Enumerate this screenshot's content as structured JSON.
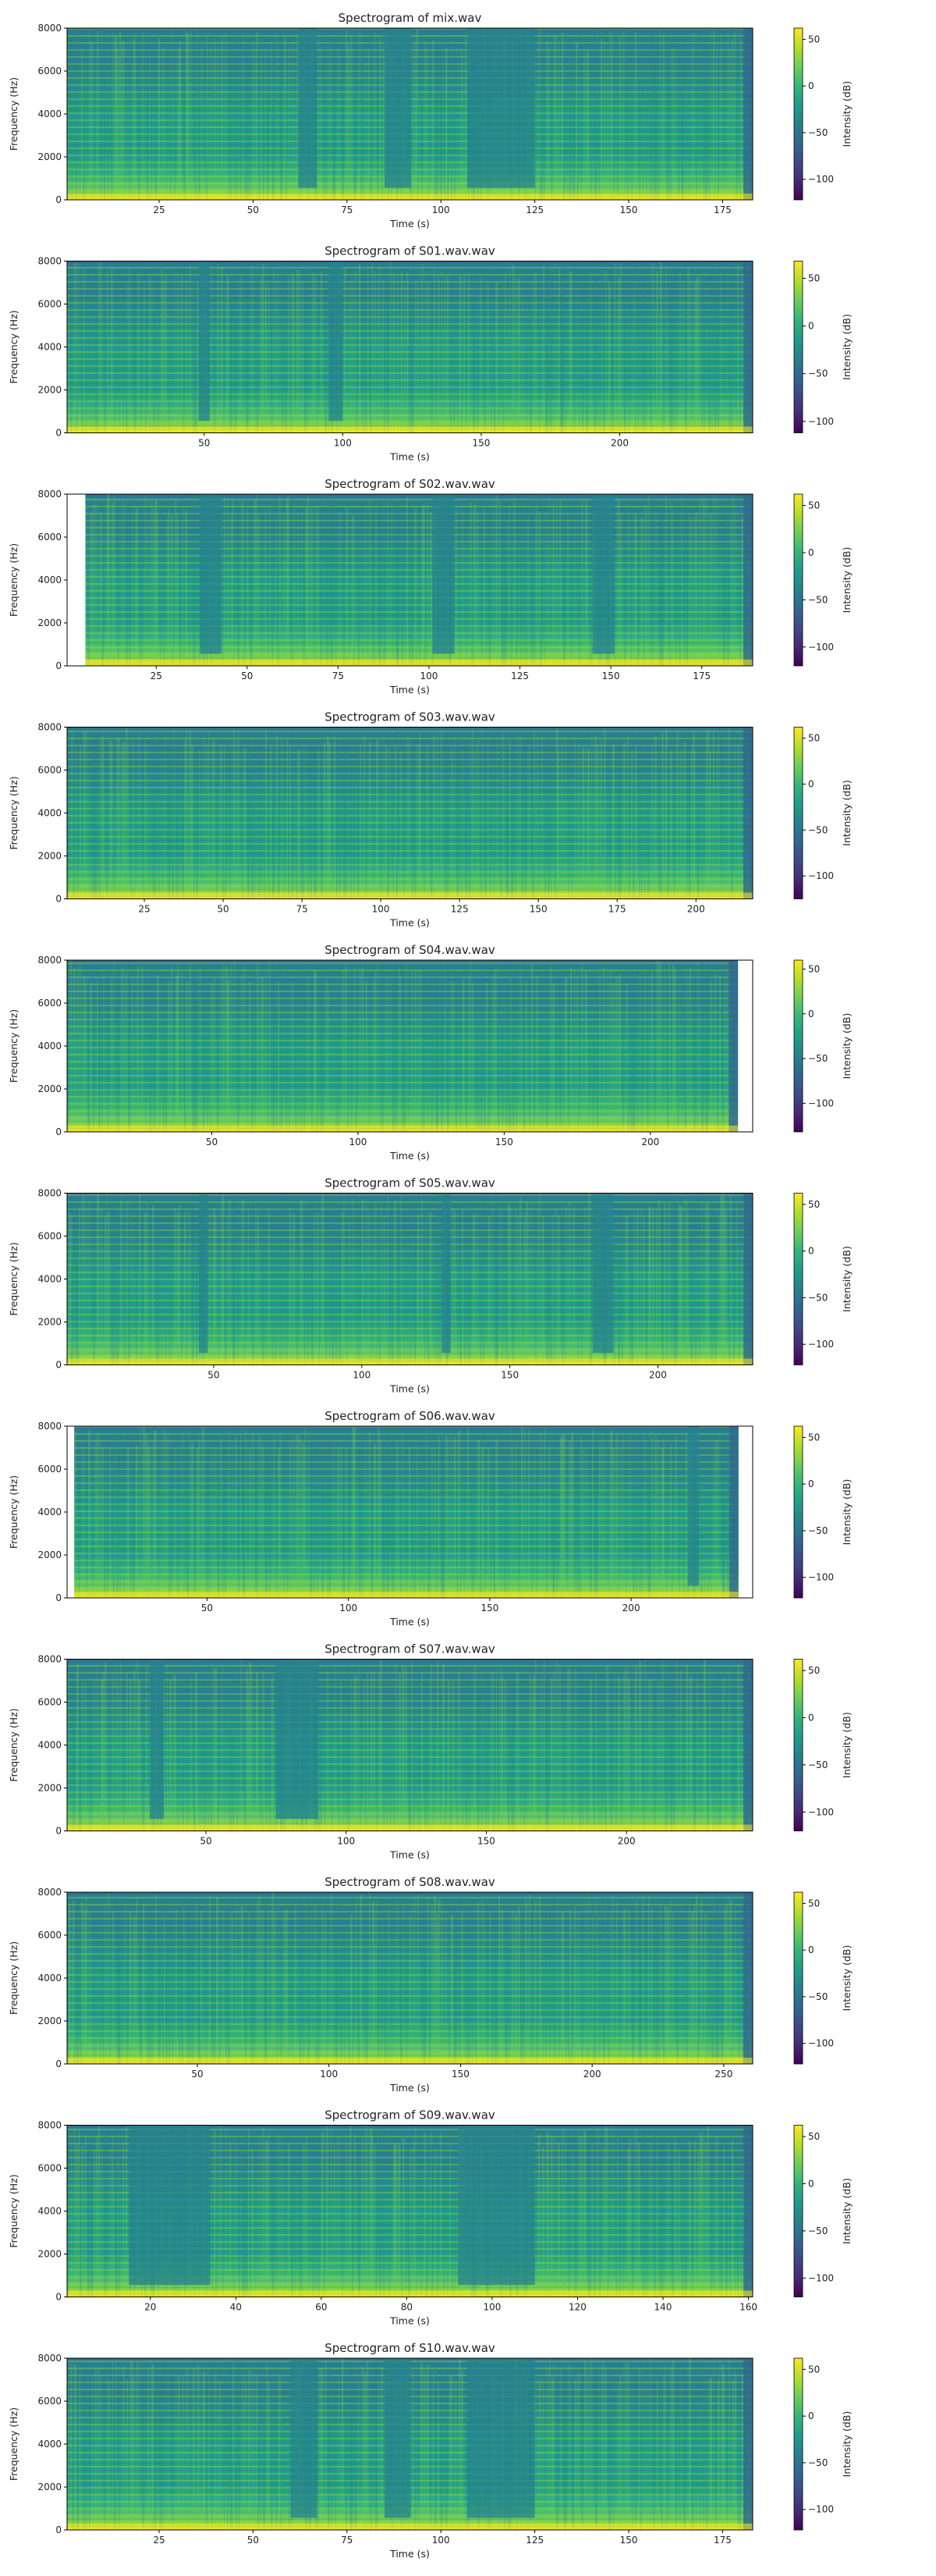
{
  "figure": {
    "colorbar_colors": [
      "#440154",
      "#482878",
      "#3e4a89",
      "#31688e",
      "#26828e",
      "#1f9e89",
      "#35b779",
      "#6ece58",
      "#b5de2b",
      "#fde725"
    ]
  },
  "chart_data": [
    {
      "type": "heatmap",
      "title": "Spectrogram of mix.wav",
      "xlabel": "Time (s)",
      "ylabel": "Frequency (Hz)",
      "colorbar_label": "Intensity (dB)",
      "xlim": [
        0.5,
        183
      ],
      "data_x_range": [
        0.5,
        183
      ],
      "ylim": [
        0,
        8000
      ],
      "xticks": [
        25,
        50,
        75,
        100,
        125,
        150,
        175
      ],
      "xtick_labels": [
        "25",
        "50",
        "75",
        "100",
        "125",
        "150",
        "175"
      ],
      "yticks": [
        0,
        2000,
        4000,
        6000,
        8000
      ],
      "ytick_labels": [
        "0",
        "2000",
        "4000",
        "6000",
        "8000"
      ],
      "clim": [
        -122,
        62
      ],
      "cticks": [
        50,
        0,
        -50,
        -100
      ],
      "ctick_labels": [
        "50",
        "0",
        "−50",
        "−100"
      ],
      "quiet_segments": [
        [
          62,
          67
        ],
        [
          85,
          92
        ],
        [
          107,
          125
        ]
      ]
    },
    {
      "type": "heatmap",
      "title": "Spectrogram of S01.wav.wav",
      "xlabel": "Time (s)",
      "ylabel": "Frequency (Hz)",
      "colorbar_label": "Intensity (dB)",
      "xlim": [
        0.5,
        248
      ],
      "data_x_range": [
        0.5,
        248
      ],
      "ylim": [
        0,
        8000
      ],
      "xticks": [
        50,
        100,
        150,
        200
      ],
      "xtick_labels": [
        "50",
        "100",
        "150",
        "200"
      ],
      "yticks": [
        0,
        2000,
        4000,
        6000,
        8000
      ],
      "ytick_labels": [
        "0",
        "2000",
        "4000",
        "6000",
        "8000"
      ],
      "clim": [
        -112,
        68
      ],
      "cticks": [
        50,
        0,
        -50,
        -100
      ],
      "ctick_labels": [
        "50",
        "0",
        "−50",
        "−100"
      ],
      "quiet_segments": [
        [
          48,
          52
        ],
        [
          95,
          100
        ]
      ]
    },
    {
      "type": "heatmap",
      "title": "Spectrogram of S02.wav.wav",
      "xlabel": "Time (s)",
      "ylabel": "Frequency (Hz)",
      "colorbar_label": "Intensity (dB)",
      "xlim": [
        0.5,
        189
      ],
      "data_x_range": [
        5.5,
        189
      ],
      "ylim": [
        0,
        8000
      ],
      "xticks": [
        25,
        50,
        75,
        100,
        125,
        150,
        175
      ],
      "xtick_labels": [
        "25",
        "50",
        "75",
        "100",
        "125",
        "150",
        "175"
      ],
      "yticks": [
        0,
        2000,
        4000,
        6000,
        8000
      ],
      "ytick_labels": [
        "0",
        "2000",
        "4000",
        "6000",
        "8000"
      ],
      "clim": [
        -120,
        62
      ],
      "cticks": [
        50,
        0,
        -50,
        -100
      ],
      "ctick_labels": [
        "50",
        "0",
        "−50",
        "−100"
      ],
      "quiet_segments": [
        [
          37,
          43
        ],
        [
          101,
          107
        ],
        [
          145,
          151
        ]
      ]
    },
    {
      "type": "heatmap",
      "title": "Spectrogram of S03.wav.wav",
      "xlabel": "Time (s)",
      "ylabel": "Frequency (Hz)",
      "colorbar_label": "Intensity (dB)",
      "xlim": [
        0.5,
        218
      ],
      "data_x_range": [
        0.5,
        218
      ],
      "ylim": [
        0,
        8000
      ],
      "xticks": [
        25,
        50,
        75,
        100,
        125,
        150,
        175,
        200
      ],
      "xtick_labels": [
        "25",
        "50",
        "75",
        "100",
        "125",
        "150",
        "175",
        "200"
      ],
      "yticks": [
        0,
        2000,
        4000,
        6000,
        8000
      ],
      "ytick_labels": [
        "0",
        "2000",
        "4000",
        "6000",
        "8000"
      ],
      "clim": [
        -125,
        62
      ],
      "cticks": [
        50,
        0,
        -50,
        -100
      ],
      "ctick_labels": [
        "50",
        "0",
        "−50",
        "−100"
      ],
      "quiet_segments": []
    },
    {
      "type": "heatmap",
      "title": "Spectrogram of S04.wav.wav",
      "xlabel": "Time (s)",
      "ylabel": "Frequency (Hz)",
      "colorbar_label": "Intensity (dB)",
      "xlim": [
        0.5,
        235
      ],
      "data_x_range": [
        0.5,
        230
      ],
      "ylim": [
        0,
        8000
      ],
      "xticks": [
        50,
        100,
        150,
        200
      ],
      "xtick_labels": [
        "50",
        "100",
        "150",
        "200"
      ],
      "yticks": [
        0,
        2000,
        4000,
        6000,
        8000
      ],
      "ytick_labels": [
        "0",
        "2000",
        "4000",
        "6000",
        "8000"
      ],
      "clim": [
        -132,
        60
      ],
      "cticks": [
        50,
        0,
        -50,
        -100
      ],
      "ctick_labels": [
        "50",
        "0",
        "−50",
        "−100"
      ],
      "quiet_segments": []
    },
    {
      "type": "heatmap",
      "title": "Spectrogram of S05.wav.wav",
      "xlabel": "Time (s)",
      "ylabel": "Frequency (Hz)",
      "colorbar_label": "Intensity (dB)",
      "xlim": [
        0.5,
        232
      ],
      "data_x_range": [
        0.5,
        232
      ],
      "ylim": [
        0,
        8000
      ],
      "xticks": [
        50,
        100,
        150,
        200
      ],
      "xtick_labels": [
        "50",
        "100",
        "150",
        "200"
      ],
      "yticks": [
        0,
        2000,
        4000,
        6000,
        8000
      ],
      "ytick_labels": [
        "0",
        "2000",
        "4000",
        "6000",
        "8000"
      ],
      "clim": [
        -122,
        62
      ],
      "cticks": [
        50,
        0,
        -50,
        -100
      ],
      "ctick_labels": [
        "50",
        "0",
        "−50",
        "−100"
      ],
      "quiet_segments": [
        [
          45,
          48
        ],
        [
          127,
          130
        ],
        [
          178,
          185
        ]
      ]
    },
    {
      "type": "heatmap",
      "title": "Spectrogram of S06.wav.wav",
      "xlabel": "Time (s)",
      "ylabel": "Frequency (Hz)",
      "colorbar_label": "Intensity (dB)",
      "xlim": [
        0.5,
        243
      ],
      "data_x_range": [
        3,
        238
      ],
      "ylim": [
        0,
        8000
      ],
      "xticks": [
        50,
        100,
        150,
        200
      ],
      "xtick_labels": [
        "50",
        "100",
        "150",
        "200"
      ],
      "yticks": [
        0,
        2000,
        4000,
        6000,
        8000
      ],
      "ytick_labels": [
        "0",
        "2000",
        "4000",
        "6000",
        "8000"
      ],
      "clim": [
        -122,
        62
      ],
      "cticks": [
        50,
        0,
        -50,
        -100
      ],
      "ctick_labels": [
        "50",
        "0",
        "−50",
        "−100"
      ],
      "quiet_segments": [
        [
          220,
          224
        ]
      ]
    },
    {
      "type": "heatmap",
      "title": "Spectrogram of S07.wav.wav",
      "xlabel": "Time (s)",
      "ylabel": "Frequency (Hz)",
      "colorbar_label": "Intensity (dB)",
      "xlim": [
        0.5,
        245
      ],
      "data_x_range": [
        0.5,
        245
      ],
      "ylim": [
        0,
        8000
      ],
      "xticks": [
        50,
        100,
        150,
        200
      ],
      "xtick_labels": [
        "50",
        "100",
        "150",
        "200"
      ],
      "yticks": [
        0,
        2000,
        4000,
        6000,
        8000
      ],
      "ytick_labels": [
        "0",
        "2000",
        "4000",
        "6000",
        "8000"
      ],
      "clim": [
        -120,
        62
      ],
      "cticks": [
        50,
        0,
        -50,
        -100
      ],
      "ctick_labels": [
        "50",
        "0",
        "−50",
        "−100"
      ],
      "quiet_segments": [
        [
          30,
          35
        ],
        [
          75,
          90
        ]
      ]
    },
    {
      "type": "heatmap",
      "title": "Spectrogram of S08.wav.wav",
      "xlabel": "Time (s)",
      "ylabel": "Frequency (Hz)",
      "colorbar_label": "Intensity (dB)",
      "xlim": [
        0.5,
        261
      ],
      "data_x_range": [
        0.5,
        261
      ],
      "ylim": [
        0,
        8000
      ],
      "xticks": [
        50,
        100,
        150,
        200,
        250
      ],
      "xtick_labels": [
        "50",
        "100",
        "150",
        "200",
        "250"
      ],
      "yticks": [
        0,
        2000,
        4000,
        6000,
        8000
      ],
      "ytick_labels": [
        "0",
        "2000",
        "4000",
        "6000",
        "8000"
      ],
      "clim": [
        -122,
        62
      ],
      "cticks": [
        50,
        0,
        -50,
        -100
      ],
      "ctick_labels": [
        "50",
        "0",
        "−50",
        "−100"
      ],
      "quiet_segments": []
    },
    {
      "type": "heatmap",
      "title": "Spectrogram of S09.wav.wav",
      "xlabel": "Time (s)",
      "ylabel": "Frequency (Hz)",
      "colorbar_label": "Intensity (dB)",
      "xlim": [
        0.5,
        161
      ],
      "data_x_range": [
        0.5,
        161
      ],
      "ylim": [
        0,
        8000
      ],
      "xticks": [
        20,
        40,
        60,
        80,
        100,
        120,
        140,
        160
      ],
      "xtick_labels": [
        "20",
        "40",
        "60",
        "80",
        "100",
        "120",
        "140",
        "160"
      ],
      "yticks": [
        0,
        2000,
        4000,
        6000,
        8000
      ],
      "ytick_labels": [
        "0",
        "2000",
        "4000",
        "6000",
        "8000"
      ],
      "clim": [
        -120,
        62
      ],
      "cticks": [
        50,
        0,
        -50,
        -100
      ],
      "ctick_labels": [
        "50",
        "0",
        "−50",
        "−100"
      ],
      "quiet_segments": [
        [
          15,
          34
        ],
        [
          92,
          110
        ]
      ]
    },
    {
      "type": "heatmap",
      "title": "Spectrogram of S10.wav.wav",
      "xlabel": "Time (s)",
      "ylabel": "Frequency (Hz)",
      "colorbar_label": "Intensity (dB)",
      "xlim": [
        0.5,
        183
      ],
      "data_x_range": [
        0.5,
        183
      ],
      "ylim": [
        0,
        8000
      ],
      "xticks": [
        25,
        50,
        75,
        100,
        125,
        150,
        175
      ],
      "xtick_labels": [
        "25",
        "50",
        "75",
        "100",
        "125",
        "150",
        "175"
      ],
      "yticks": [
        0,
        2000,
        4000,
        6000,
        8000
      ],
      "ytick_labels": [
        "0",
        "2000",
        "4000",
        "6000",
        "8000"
      ],
      "clim": [
        -122,
        62
      ],
      "cticks": [
        50,
        0,
        -50,
        -100
      ],
      "ctick_labels": [
        "50",
        "0",
        "−50",
        "−100"
      ],
      "quiet_segments": [
        [
          60,
          67
        ],
        [
          85,
          92
        ],
        [
          107,
          125
        ]
      ]
    }
  ]
}
